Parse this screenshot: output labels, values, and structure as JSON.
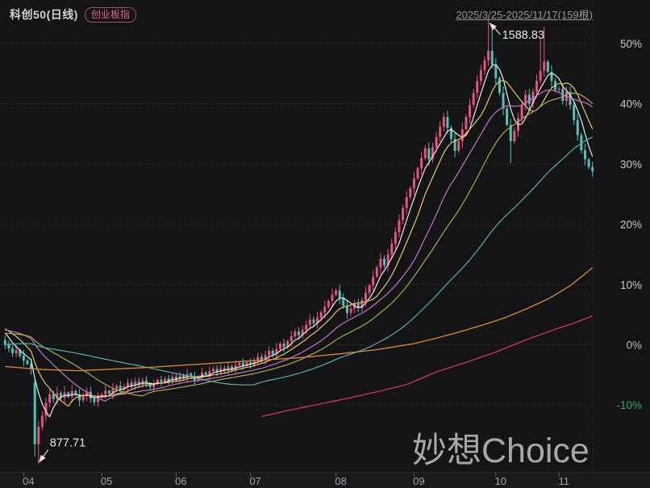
{
  "header": {
    "title": "科创50(日线)",
    "badge": "创业板指",
    "date_range": "2025/3/25-2025/11/17(159根)"
  },
  "watermark": "妙想Choice",
  "colors": {
    "background": "#141416",
    "up_candle": "#e8537d",
    "down_candle": "#4fc2b8",
    "grid": "#3a3a3e",
    "annotation_text": "#e6e6e8",
    "axis_text": "#a2a2a6",
    "negative_axis_green": "#2fae63"
  },
  "chart_data": {
    "type": "candlestick",
    "title": "科创50(日线)",
    "overlay_badge": "创业板指",
    "range_label": "2025/3/25-2025/11/17(159根)",
    "bars": 159,
    "unit": "percent change vs 2025/3/25",
    "y_axis": {
      "min": -22,
      "max": 56,
      "grid": "dotted",
      "labels": [
        {
          "text": "50%",
          "value": 50,
          "color": "#c9c9cc"
        },
        {
          "text": "40%",
          "value": 40,
          "color": "#c9c9cc"
        },
        {
          "text": "30%",
          "value": 30,
          "color": "#c9c9cc"
        },
        {
          "text": "20%",
          "value": 20,
          "color": "#c9c9cc"
        },
        {
          "text": "10%",
          "value": 10,
          "color": "#c9c9cc"
        },
        {
          "text": "0%",
          "value": 0,
          "color": "#b9b9bc"
        },
        {
          "text": "-10%",
          "value": -10,
          "color": "#2fae63"
        }
      ]
    },
    "x_axis": {
      "labels": [
        "04",
        "05",
        "06",
        "07",
        "08",
        "09",
        "10",
        "11"
      ],
      "month_start_bars": [
        5,
        26,
        46,
        66,
        89,
        110,
        132,
        149
      ]
    },
    "closes_pct": [
      0,
      -0.6,
      -1.4,
      -0.9,
      -1.8,
      -2.6,
      -3.2,
      -4.0,
      -16.5,
      -13.6,
      -11.8,
      -9.6,
      -8.2,
      -9.0,
      -8.0,
      -8.8,
      -7.9,
      -8.6,
      -7.7,
      -8.3,
      -9.2,
      -8.5,
      -7.8,
      -8.9,
      -9.5,
      -8.7,
      -8.2,
      -7.6,
      -8.1,
      -7.3,
      -6.8,
      -7.4,
      -6.9,
      -6.3,
      -6.8,
      -6.1,
      -6.6,
      -5.9,
      -6.4,
      -7.0,
      -6.5,
      -5.8,
      -6.2,
      -5.6,
      -6.0,
      -5.3,
      -5.7,
      -5.1,
      -5.5,
      -4.8,
      -5.3,
      -5.9,
      -5.2,
      -4.6,
      -5.0,
      -4.4,
      -4.0,
      -4.5,
      -3.9,
      -4.3,
      -3.6,
      -4.1,
      -3.4,
      -3.0,
      -3.5,
      -2.9,
      -3.3,
      -2.6,
      -2.0,
      -2.5,
      -1.7,
      -1.0,
      -1.6,
      -0.7,
      0.2,
      -0.4,
      0.6,
      1.4,
      2.2,
      1.6,
      2.5,
      3.3,
      4.2,
      3.6,
      4.5,
      5.4,
      6.3,
      7.3,
      8.3,
      9.0,
      7.8,
      6.5,
      5.3,
      6.0,
      6.8,
      6.1,
      7.4,
      8.6,
      9.9,
      11.3,
      12.8,
      14.3,
      13.2,
      15.0,
      16.8,
      18.7,
      20.7,
      22.7,
      24.5,
      26.0,
      27.6,
      29.3,
      31.0,
      32.6,
      30.8,
      32.8,
      34.5,
      36.2,
      37.8,
      36.0,
      34.2,
      32.2,
      33.8,
      35.8,
      37.8,
      39.8,
      41.8,
      43.8,
      45.6,
      47.2,
      48.8,
      46.5,
      44.3,
      41.8,
      39.2,
      36.5,
      33.8,
      35.5,
      37.6,
      39.8,
      41.5,
      40.0,
      42.0,
      43.8,
      45.5,
      47.0,
      45.3,
      43.8,
      42.3,
      42.5,
      40.5,
      42.0,
      39.8,
      37.3,
      34.8,
      32.3,
      30.8,
      29.5,
      28.8
    ],
    "pre_window_closes_pct": [
      -4.0,
      -3.6,
      -3.9,
      -3.3,
      -3.6,
      -3.0,
      -3.3,
      -2.7,
      -3.0,
      -2.4,
      -2.8,
      -2.2,
      -2.5,
      -1.9,
      -2.3,
      -1.7,
      -2.0,
      -1.4,
      -1.8,
      -1.2,
      -1.5,
      -0.9,
      -1.3,
      -0.7,
      -1.0,
      -0.4,
      -0.8,
      -0.2,
      -0.5,
      0.1,
      -0.2,
      0.4,
      0.1,
      0.7,
      0.3,
      1.0,
      0.6,
      1.3,
      0.9,
      1.6,
      1.2,
      1.9,
      1.5,
      2.2,
      1.8,
      2.5,
      2.1,
      2.8,
      2.4,
      3.1,
      2.7,
      3.4,
      3.0,
      3.7,
      3.3,
      3.6,
      3.2,
      2.8,
      2.3,
      1.5
    ],
    "open_overrides": {
      "0": 0.8,
      "8": -6.3
    },
    "wick_overrides": {
      "8": {
        "low": -18.6
      },
      "9": {
        "low": -19.82
      },
      "130": {
        "high": 54.3
      },
      "131": {
        "high": 52.6
      },
      "136": {
        "low": 30.2
      },
      "144": {
        "high": 50.8
      },
      "145": {
        "high": 52.8
      }
    },
    "annotations": [
      {
        "text": "877.71",
        "bar": 9,
        "value_pct": -19.82,
        "kind": "low"
      },
      {
        "text": "1588.83",
        "bar": 130,
        "value_pct": 54.3,
        "kind": "high"
      }
    ],
    "ma_computed": [
      {
        "name": "MA5",
        "period": 5,
        "color": "#ececee"
      },
      {
        "name": "MA10",
        "period": 10,
        "color": "#e2cc5c"
      },
      {
        "name": "MA20",
        "period": 20,
        "color": "#c873ca"
      },
      {
        "name": "MA30",
        "period": 30,
        "color": "#a4b03e"
      },
      {
        "name": "MA60",
        "period": 60,
        "color": "#52b3a9"
      }
    ],
    "ma_polylines": [
      {
        "name": "MA120",
        "color": "#e08a35",
        "points": [
          [
            0,
            -3.6
          ],
          [
            10,
            -4.1
          ],
          [
            20,
            -4.3
          ],
          [
            30,
            -4.0
          ],
          [
            40,
            -3.7
          ],
          [
            50,
            -3.3
          ],
          [
            60,
            -2.9
          ],
          [
            70,
            -2.5
          ],
          [
            80,
            -2.1
          ],
          [
            90,
            -1.5
          ],
          [
            100,
            -0.8
          ],
          [
            110,
            0.2
          ],
          [
            116,
            1.1
          ],
          [
            122,
            2.1
          ],
          [
            128,
            3.2
          ],
          [
            134,
            4.4
          ],
          [
            140,
            5.9
          ],
          [
            146,
            7.6
          ],
          [
            152,
            9.8
          ],
          [
            158,
            12.8
          ]
        ]
      },
      {
        "name": "MA250",
        "color": "#d4365e",
        "points": [
          [
            69,
            -11.9
          ],
          [
            76,
            -10.9
          ],
          [
            84,
            -9.9
          ],
          [
            92,
            -8.9
          ],
          [
            100,
            -7.8
          ],
          [
            108,
            -6.6
          ],
          [
            116,
            -4.5
          ],
          [
            124,
            -2.9
          ],
          [
            132,
            -1.2
          ],
          [
            140,
            0.8
          ],
          [
            148,
            2.6
          ],
          [
            153,
            3.6
          ],
          [
            158,
            4.8
          ]
        ]
      }
    ]
  }
}
